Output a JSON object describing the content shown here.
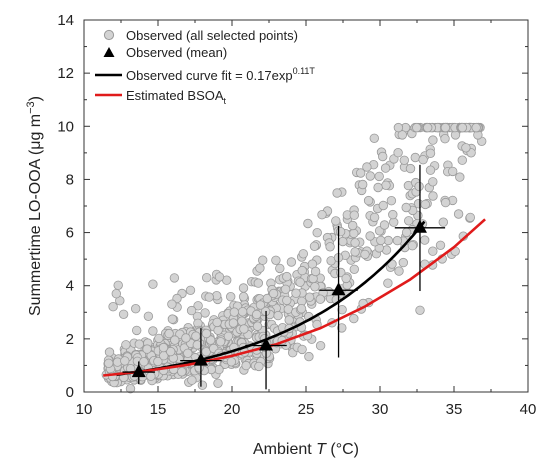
{
  "chart_data": {
    "type": "scatter",
    "xlabel_pre": "Ambient ",
    "xlabel_var": "T",
    "xlabel_post": " (°C)",
    "ylabel_pre": "Summertime LO-OOA (μg m",
    "ylabel_sup": "−3",
    "ylabel_post": ")",
    "xlim": [
      10,
      40
    ],
    "ylim": [
      0,
      14
    ],
    "xticks": [
      10,
      15,
      20,
      25,
      30,
      35,
      40
    ],
    "yticks": [
      0,
      2,
      4,
      6,
      8,
      10,
      12,
      14
    ],
    "grid": false,
    "legend_position": "top-left",
    "colors": {
      "scatter_fill": "#d3d3d3",
      "scatter_edge": "#9a9a9a",
      "observed_mean": "#000000",
      "fit_curve": "#000000",
      "estimated_curve": "#e01b1b",
      "axis": "#333333"
    },
    "legend": [
      {
        "text": "Observed (all selected points)",
        "marker": "circle-gray"
      },
      {
        "text": "Observed (mean)",
        "marker": "triangle-black"
      },
      {
        "text": "Observed curve fit = 0.17exp",
        "sup": "0.11T",
        "marker": "line-black"
      },
      {
        "text": "Estimated BSOA",
        "sub": "t",
        "marker": "line-red"
      }
    ],
    "series": [
      {
        "name": "Observed (mean)",
        "x": [
          13.7,
          17.9,
          22.3,
          27.2,
          32.7
        ],
        "y": [
          0.75,
          1.18,
          1.75,
          3.83,
          6.18
        ],
        "xerr": [
          1.1,
          1.4,
          1.4,
          1.3,
          1.7
        ],
        "ylow": [
          0.3,
          0.2,
          0.1,
          1.3,
          3.8
        ],
        "yhigh": [
          1.15,
          2.4,
          3.05,
          6.25,
          8.55
        ]
      },
      {
        "name": "Observed curve fit = 0.17exp^0.11T",
        "function": "0.17*exp(0.11*x)",
        "x": [
          12.2,
          15,
          18,
          21,
          24,
          27,
          30,
          33
        ],
        "y": [
          0.65,
          0.89,
          1.23,
          1.71,
          2.37,
          3.3,
          4.59,
          6.39
        ]
      },
      {
        "name": "Estimated BSOA_t",
        "x": [
          11.3,
          14,
          17,
          20,
          23,
          26,
          29,
          32,
          35,
          37.1
        ],
        "y": [
          0.62,
          0.78,
          1.02,
          1.36,
          1.8,
          2.41,
          3.22,
          4.22,
          5.45,
          6.5
        ]
      }
    ],
    "scatter_cloud": {
      "name": "Observed (all selected points)",
      "x_range": [
        11.5,
        37
      ],
      "approx_points": 1200,
      "y_range": [
        0,
        9.9
      ]
    }
  }
}
